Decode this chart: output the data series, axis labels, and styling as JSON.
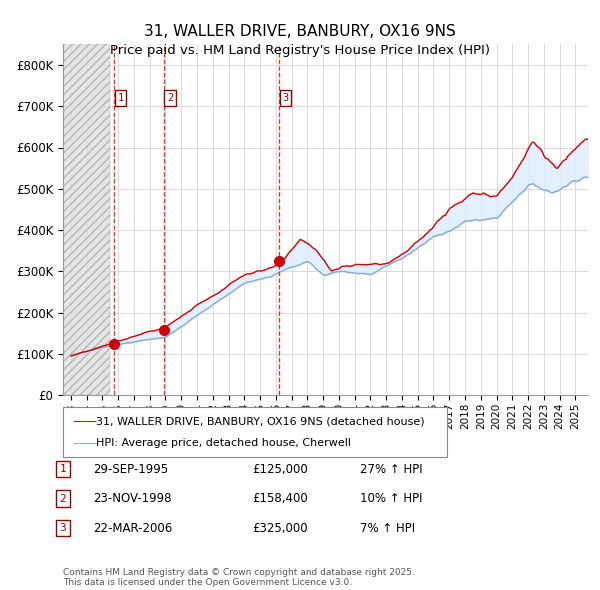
{
  "title_line1": "31, WALLER DRIVE, BANBURY, OX16 9NS",
  "title_line2": "Price paid vs. HM Land Registry's House Price Index (HPI)",
  "ylim": [
    0,
    850000
  ],
  "yticks": [
    0,
    100000,
    200000,
    300000,
    400000,
    500000,
    600000,
    700000,
    800000
  ],
  "ytick_labels": [
    "£0",
    "£100K",
    "£200K",
    "£300K",
    "£400K",
    "£500K",
    "£600K",
    "£700K",
    "£800K"
  ],
  "xlim_start": 1992.5,
  "xlim_end": 2025.8,
  "sale_dates": [
    1995.75,
    1998.9,
    2006.22
  ],
  "sale_prices": [
    125000,
    158400,
    325000
  ],
  "sale_labels": [
    "1",
    "2",
    "3"
  ],
  "sale_date_strs": [
    "29-SEP-1995",
    "23-NOV-1998",
    "22-MAR-2006"
  ],
  "sale_price_strs": [
    "£125,000",
    "£158,400",
    "£325,000"
  ],
  "sale_hpi_strs": [
    "27% ↑ HPI",
    "10% ↑ HPI",
    "7% ↑ HPI"
  ],
  "hpi_fill_color": "#ddeeff",
  "hpi_line_color": "#88aacc",
  "price_color": "#cc0000",
  "legend_label_price": "31, WALLER DRIVE, BANBURY, OX16 9NS (detached house)",
  "legend_label_hpi": "HPI: Average price, detached house, Cherwell",
  "footnote": "Contains HM Land Registry data © Crown copyright and database right 2025.\nThis data is licensed under the Open Government Licence v3.0.",
  "background_color": "#ffffff",
  "grid_color": "#cccccc",
  "hatched_region_end": 1995.5
}
